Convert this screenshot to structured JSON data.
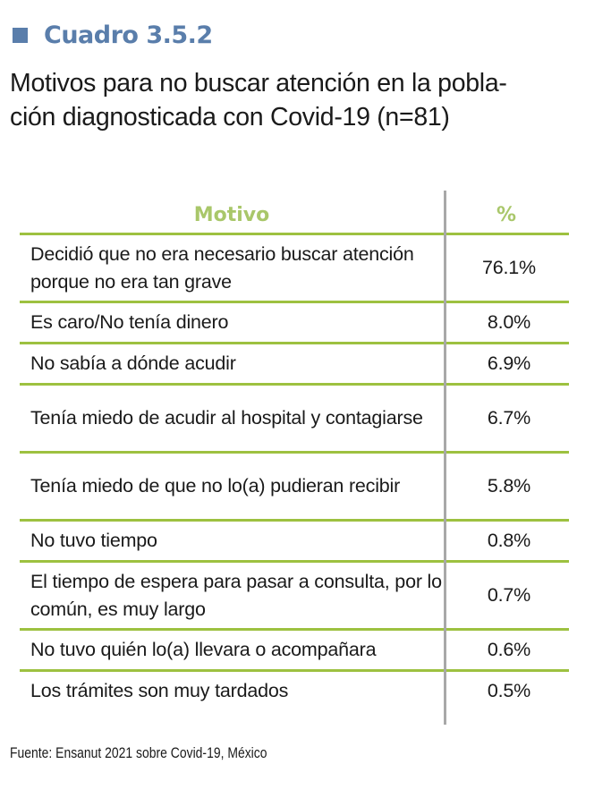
{
  "colors": {
    "accent_blue": "#5a7eab",
    "accent_green": "#9dc140",
    "header_green": "#a9c76a",
    "divider_gray": "#a8a8a8"
  },
  "header": {
    "label": "Cuadro 3.5.2",
    "subtitle_line1": "Motivos para no buscar atención en la pobla-",
    "subtitle_line2": "ción diagnosticada con Covid-19 (n=81)"
  },
  "table": {
    "columns": [
      "Motivo",
      "%"
    ],
    "rows": [
      {
        "motivo": "Decidió que no era necesario buscar atención porque no era tan grave",
        "pct": "76.1%"
      },
      {
        "motivo": "Es caro/No tenía dinero",
        "pct": "8.0%"
      },
      {
        "motivo": "No sabía a dónde acudir",
        "pct": "6.9%"
      },
      {
        "motivo": "Tenía miedo de acudir al hospital y contagiarse",
        "pct": "6.7%"
      },
      {
        "motivo": "Tenía miedo de que no lo(a) pudieran recibir",
        "pct": "5.8%"
      },
      {
        "motivo": "No tuvo tiempo",
        "pct": "0.8%"
      },
      {
        "motivo": "El tiempo de espera para pasar a consulta, por lo común, es muy largo",
        "pct": "0.7%"
      },
      {
        "motivo": "No tuvo quién lo(a) llevara o acompañara",
        "pct": "0.6%"
      },
      {
        "motivo": "Los trámites son muy tardados",
        "pct": "0.5%"
      }
    ]
  },
  "source": "Fuente: Ensanut 2021 sobre Covid-19, México"
}
